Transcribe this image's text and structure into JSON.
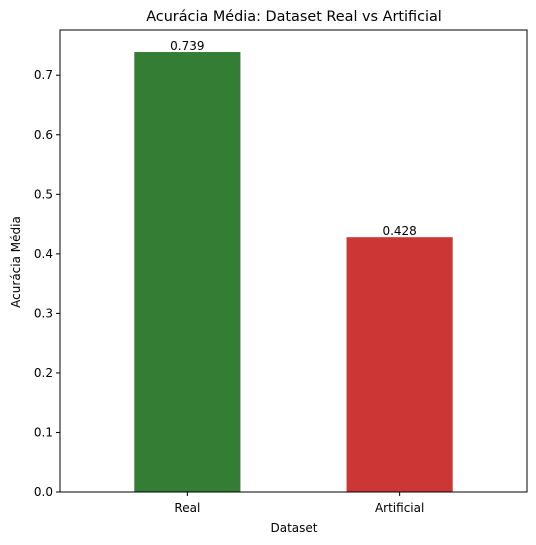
{
  "chart_data": {
    "type": "bar",
    "title": "Acurácia Média: Dataset Real vs Artificial",
    "xlabel": "Dataset",
    "ylabel": "Acurácia Média",
    "categories": [
      "Real",
      "Artificial"
    ],
    "values": [
      0.739,
      0.428
    ],
    "value_labels": [
      "0.739",
      "0.428"
    ],
    "colors": [
      "#347d35",
      "#cc3736"
    ],
    "ylim": [
      0,
      0.776
    ],
    "yticks": [
      0.0,
      0.1,
      0.2,
      0.3,
      0.4,
      0.5,
      0.6,
      0.7
    ],
    "ytick_labels": [
      "0.0",
      "0.1",
      "0.2",
      "0.3",
      "0.4",
      "0.5",
      "0.6",
      "0.7"
    ],
    "grid": false,
    "legend": "none"
  }
}
